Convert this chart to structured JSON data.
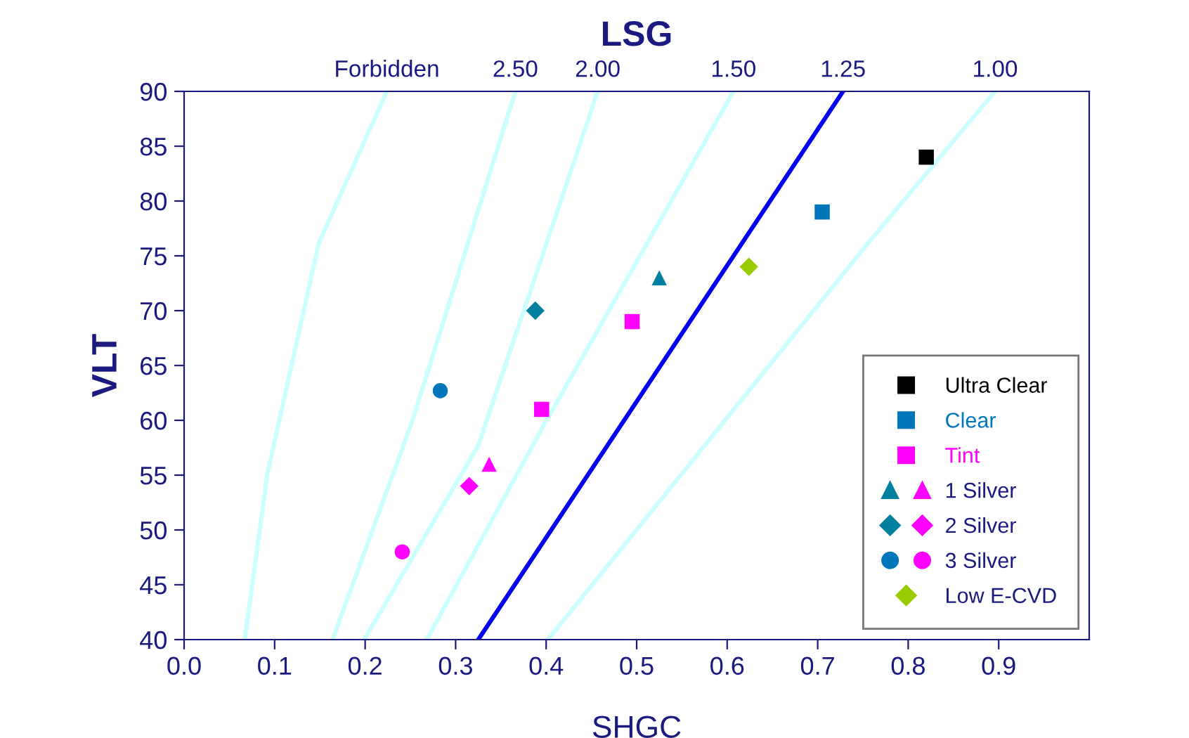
{
  "chart_data": {
    "type": "scatter",
    "xlabel": "SHGC",
    "ylabel": "VLT",
    "xlim": [
      0,
      1.0
    ],
    "xticks": [
      {
        "value": 0,
        "label": "0.0"
      },
      0.1,
      0.2,
      0.3,
      0.4,
      0.5,
      0.6,
      0.7,
      0.8,
      0.9
    ],
    "ylim": [
      40,
      90
    ],
    "yticks": [
      40,
      45,
      50,
      55,
      60,
      65,
      70,
      75,
      80,
      85,
      90
    ],
    "annotations": [
      "LSG",
      {
        "text": "Forbidden",
        "x": 0.224,
        "y": 90
      },
      {
        "text": "2.50",
        "x": 0.366,
        "y": 90
      },
      {
        "text": "2.00",
        "x": 0.457,
        "y": 90
      },
      {
        "text": "1.50",
        "x": 0.607,
        "y": 90
      },
      {
        "text": "1.25",
        "x": 0.728,
        "y": 90
      },
      {
        "text": "1.00",
        "x": 0.896,
        "y": 90
      }
    ],
    "grid": false,
    "legend": "bottom right",
    "series": [
      {
        "type": "line",
        "color": "#ccffff",
        "x": [
          0.067,
          0.092,
          0.149,
          0.224
        ],
        "values": [
          40,
          55.1,
          76.2,
          90
        ],
        "marker": "none"
      },
      {
        "type": "line",
        "color": "#ccffff",
        "x": [
          0.164,
          0.252,
          0.366
        ],
        "values": [
          40,
          59.9,
          90
        ],
        "marker": "none"
      },
      {
        "type": "line",
        "color": "#ccffff",
        "x": [
          0.199,
          0.325,
          0.457
        ],
        "values": [
          40,
          57.7,
          90
        ],
        "marker": "none"
      },
      {
        "type": "line",
        "color": "#ccffff",
        "x": [
          0.268,
          0.397,
          0.607
        ],
        "values": [
          40,
          59.5,
          90
        ],
        "marker": "none"
      },
      {
        "type": "line",
        "color": "#0000ee",
        "x": [
          0.325,
          0.728
        ],
        "values": [
          40,
          90
        ],
        "marker": "none"
      },
      {
        "type": "line",
        "color": "#ccffff",
        "x": [
          0.402,
          0.759,
          0.896
        ],
        "values": [
          40,
          76.5,
          90
        ],
        "marker": "none"
      },
      {
        "name": "Ultra Clear",
        "color": "#000000",
        "marker": "square",
        "x": [
          0.82
        ],
        "values": [
          84
        ]
      },
      {
        "name": "Clear",
        "color": "#0077bb",
        "marker": "square",
        "x": [
          0.705
        ],
        "values": [
          79
        ]
      },
      {
        "name": "Tint",
        "color": "#ff00ff",
        "marker": "square",
        "x": [
          0.495,
          0.395
        ],
        "values": [
          69,
          61
        ]
      },
      {
        "name": "1 Silver",
        "colors": [
          "#0080a0",
          "#ff00ff"
        ],
        "marker": "triangle",
        "x": [
          0.525,
          0.337
        ],
        "values": [
          73,
          56
        ]
      },
      {
        "name": "2 Silver",
        "colors": [
          "#0080a0",
          "#ff00ff"
        ],
        "marker": "diamond",
        "x": [
          0.388,
          0.315
        ],
        "values": [
          70,
          54
        ]
      },
      {
        "name": "3 Silver",
        "colors": [
          "#0077bb",
          "#ff00ff"
        ],
        "marker": "circle",
        "x": [
          0.283,
          0.241
        ],
        "values": [
          62.7,
          48
        ]
      },
      {
        "name": "Low E-CVD",
        "color": "#99cc00",
        "marker": "diamond",
        "x": [
          0.624
        ],
        "values": [
          74
        ]
      }
    ]
  }
}
